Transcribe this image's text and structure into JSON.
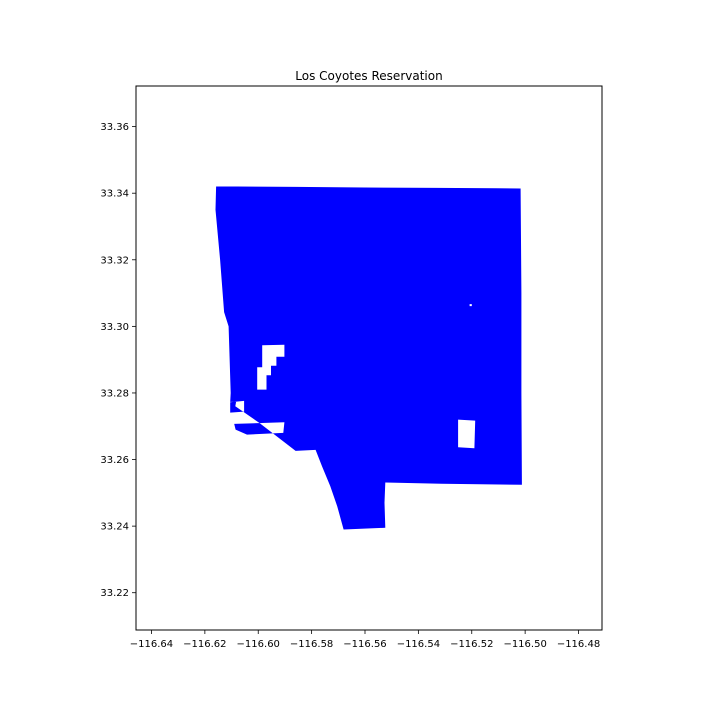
{
  "map": {
    "title": "Los Coyotes Reservation",
    "fill_color": "#0000ff",
    "hole_color": "#ffffff",
    "x_range": [
      -116.6458,
      -116.4712
    ],
    "y_range": [
      33.2088,
      33.3722
    ],
    "x_ticks": [
      -116.64,
      -116.62,
      -116.6,
      -116.58,
      -116.56,
      -116.54,
      -116.52,
      -116.5,
      -116.48
    ],
    "x_tick_labels": [
      "−116.64",
      "−116.62",
      "−116.60",
      "−116.58",
      "−116.56",
      "−116.54",
      "−116.52",
      "−116.50",
      "−116.48"
    ],
    "y_ticks": [
      33.22,
      33.24,
      33.26,
      33.28,
      33.3,
      33.32,
      33.34,
      33.36
    ],
    "y_tick_labels": [
      "33.22",
      "33.24",
      "33.26",
      "33.28",
      "33.30",
      "33.32",
      "33.34",
      "33.36"
    ],
    "outer_boundary": [
      [
        -116.6158,
        33.342
      ],
      [
        -116.6083,
        33.342
      ],
      [
        -116.5859,
        33.3419
      ],
      [
        -116.5601,
        33.3417
      ],
      [
        -116.5331,
        33.3416
      ],
      [
        -116.5107,
        33.3415
      ],
      [
        -116.5017,
        33.3414
      ],
      [
        -116.5014,
        33.31
      ],
      [
        -116.5014,
        33.28
      ],
      [
        -116.5012,
        33.2524
      ],
      [
        -116.5314,
        33.2527
      ],
      [
        -116.5524,
        33.2531
      ],
      [
        -116.5527,
        33.247
      ],
      [
        -116.5524,
        33.2395
      ],
      [
        -116.568,
        33.239
      ],
      [
        -116.5704,
        33.246
      ],
      [
        -116.573,
        33.252
      ],
      [
        -116.5761,
        33.258
      ],
      [
        -116.5785,
        33.2629
      ],
      [
        -116.586,
        33.2626
      ],
      [
        -116.5996,
        33.271
      ],
      [
        -116.6086,
        33.276
      ],
      [
        -116.6083,
        33.2773
      ],
      [
        -116.6105,
        33.2773
      ],
      [
        -116.6103,
        33.28
      ],
      [
        -116.6111,
        33.3
      ],
      [
        -116.6128,
        33.3043
      ],
      [
        -116.6143,
        33.32
      ],
      [
        -116.616,
        33.335
      ]
    ],
    "holes": [
      [
        [
          -116.5985,
          33.2943
        ],
        [
          -116.5902,
          33.2945
        ],
        [
          -116.5902,
          33.2909
        ],
        [
          -116.5932,
          33.2909
        ],
        [
          -116.5932,
          33.2882
        ],
        [
          -116.5952,
          33.2882
        ],
        [
          -116.5952,
          33.2853
        ],
        [
          -116.5969,
          33.2853
        ],
        [
          -116.5969,
          33.281
        ],
        [
          -116.6004,
          33.281
        ],
        [
          -116.6004,
          33.2877
        ],
        [
          -116.5985,
          33.2877
        ]
      ],
      [
        [
          -116.6105,
          33.2772
        ],
        [
          -116.6053,
          33.2776
        ],
        [
          -116.6053,
          33.2744
        ],
        [
          -116.6105,
          33.2741
        ]
      ],
      [
        [
          -116.609,
          33.2707
        ],
        [
          -116.5902,
          33.2712
        ],
        [
          -116.5906,
          33.268
        ],
        [
          -116.6042,
          33.2675
        ],
        [
          -116.6085,
          33.269
        ]
      ],
      [
        [
          -116.5251,
          33.272
        ],
        [
          -116.5187,
          33.2717
        ],
        [
          -116.519,
          33.2634
        ],
        [
          -116.5251,
          33.2637
        ]
      ],
      [
        [
          -116.5208,
          33.3067
        ],
        [
          -116.52,
          33.3067
        ],
        [
          -116.52,
          33.3061
        ],
        [
          -116.5208,
          33.3061
        ]
      ]
    ]
  }
}
